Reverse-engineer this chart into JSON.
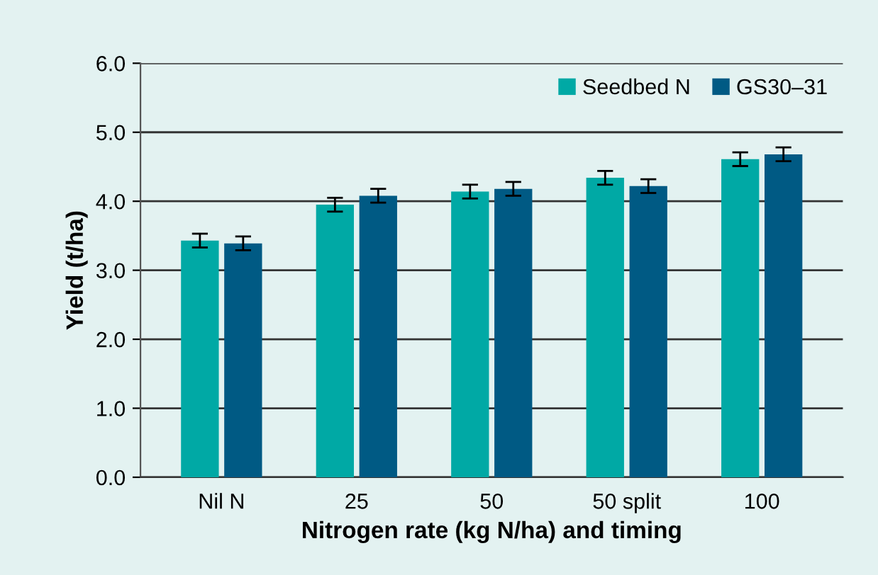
{
  "chart_data": {
    "type": "bar",
    "xlabel": "Nitrogen rate (kg N/ha) and timing",
    "ylabel": "Yield (t/ha)",
    "categories": [
      "Nil N",
      "25",
      "50",
      "50 split",
      "100"
    ],
    "series": [
      {
        "name": "Seedbed N",
        "color": "#00a9a5",
        "values": [
          3.43,
          3.95,
          4.14,
          4.34,
          4.61
        ],
        "errors": [
          0.1,
          0.1,
          0.1,
          0.1,
          0.1
        ]
      },
      {
        "name": "GS30–31",
        "color": "#005a84",
        "values": [
          3.39,
          4.08,
          4.18,
          4.22,
          4.68
        ],
        "errors": [
          0.1,
          0.1,
          0.1,
          0.1,
          0.1
        ]
      }
    ],
    "ylim": [
      0,
      6
    ],
    "yticks": [
      {
        "value": 0,
        "label": "0.0"
      },
      {
        "value": 1,
        "label": "1.0"
      },
      {
        "value": 2,
        "label": "2.0"
      },
      {
        "value": 3,
        "label": "3.0"
      },
      {
        "value": 4,
        "label": "4.0"
      },
      {
        "value": 5,
        "label": "5.0"
      },
      {
        "value": 6,
        "label": "6.0"
      }
    ],
    "grid": "y",
    "legend": "top right"
  }
}
